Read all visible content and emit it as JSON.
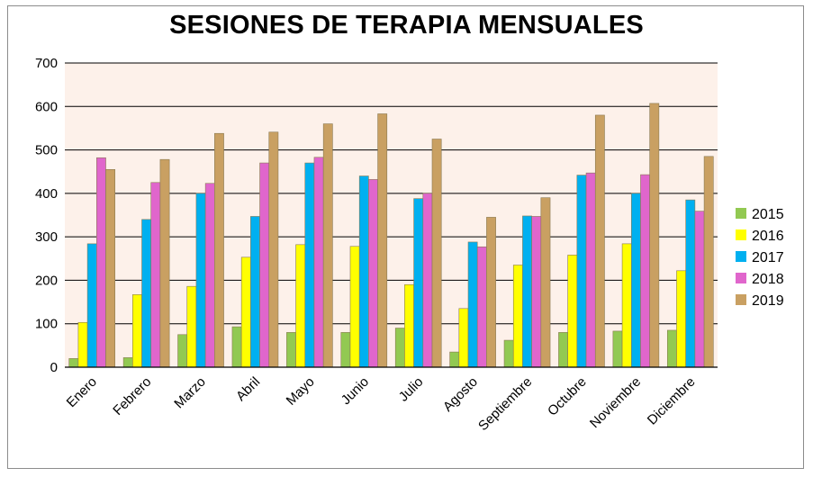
{
  "chart_data": {
    "type": "bar",
    "title": "SESIONES DE TERAPIA MENSUALES",
    "xlabel": "",
    "ylabel": "",
    "ylim": [
      0,
      700
    ],
    "yticks": [
      "0",
      "100",
      "200",
      "300",
      "400",
      "500",
      "600",
      "700"
    ],
    "grid": true,
    "legend_position": "right",
    "categories": [
      "Enero",
      "Febrero",
      "Marzo",
      "Abril",
      "Mayo",
      "Junio",
      "Julio",
      "Agosto",
      "Septiembre",
      "Octubre",
      "Noviembre",
      "Diciembre"
    ],
    "series": [
      {
        "name": "2015",
        "color": "#92c952",
        "values": [
          20,
          22,
          75,
          93,
          80,
          80,
          90,
          35,
          62,
          80,
          83,
          85
        ]
      },
      {
        "name": "2016",
        "color": "#ffff00",
        "values": [
          103,
          167,
          186,
          253,
          282,
          278,
          190,
          135,
          235,
          258,
          284,
          222
        ]
      },
      {
        "name": "2017",
        "color": "#00b0f0",
        "values": [
          284,
          340,
          400,
          347,
          470,
          440,
          388,
          288,
          348,
          442,
          400,
          385
        ]
      },
      {
        "name": "2018",
        "color": "#e066cc",
        "values": [
          482,
          425,
          423,
          470,
          483,
          432,
          400,
          277,
          347,
          447,
          443,
          359
        ]
      },
      {
        "name": "2019",
        "color": "#c9a062",
        "values": [
          455,
          478,
          538,
          541,
          560,
          583,
          525,
          345,
          390,
          580,
          607,
          485
        ]
      }
    ]
  }
}
